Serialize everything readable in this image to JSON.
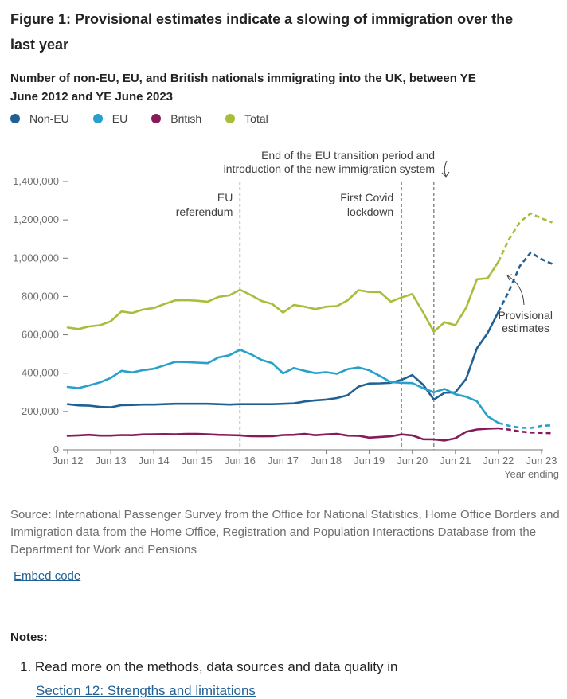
{
  "figure_title": "Figure 1: Provisional estimates indicate a slowing of immigration over the last year",
  "chart_data": {
    "type": "line",
    "title": "Number of non-EU, EU, and British nationals immigrating into the UK, between YE June 2012 and YE June 2023",
    "xlabel": "Year ending",
    "ylabel": "",
    "ylim": [
      0,
      1400000
    ],
    "y_ticks": [
      0,
      200000,
      400000,
      600000,
      800000,
      1000000,
      1200000,
      1400000
    ],
    "y_tick_labels": [
      "0",
      "200,000",
      "400,000",
      "600,000",
      "800,000",
      "1,000,000",
      "1,200,000",
      "1,400,000"
    ],
    "x_tick_labels": [
      "Jun 12",
      "Jun 13",
      "Jun 14",
      "Jun 15",
      "Jun 16",
      "Jun 17",
      "Jun 18",
      "Jun 19",
      "Jun 20",
      "Jun 21",
      "Jun 22",
      "Jun 23"
    ],
    "x_start": "Jun 12",
    "x_end": "Jun 23",
    "x_step": "quarter",
    "grid": false,
    "legend_position": "top-left",
    "series": [
      {
        "name": "Non-EU",
        "color": "#206095",
        "values": [
          238000,
          232000,
          230000,
          224000,
          222000,
          233000,
          234000,
          236000,
          236000,
          238000,
          240000,
          240000,
          240000,
          240000,
          238000,
          236000,
          238000,
          238000,
          238000,
          238000,
          240000,
          242000,
          252000,
          258000,
          262000,
          270000,
          285000,
          330000,
          346000,
          347000,
          350000,
          365000,
          390000,
          340000,
          262000,
          298000,
          300000,
          370000,
          530000,
          610000,
          720000
        ],
        "provisional_values": [
          720000,
          830000,
          960000,
          1030000,
          995000,
          970000
        ]
      },
      {
        "name": "EU",
        "color": "#27a0cc",
        "values": [
          328000,
          322000,
          336000,
          352000,
          375000,
          412000,
          404000,
          416000,
          423000,
          441000,
          459000,
          458000,
          455000,
          452000,
          482000,
          493000,
          522000,
          499000,
          469000,
          452000,
          399000,
          427000,
          412000,
          400000,
          405000,
          397000,
          421000,
          430000,
          415000,
          385000,
          353000,
          350000,
          348000,
          322000,
          300000,
          318000,
          290000,
          277000,
          253000,
          175000,
          140000
        ],
        "provisional_values": [
          140000,
          125000,
          115000,
          114000,
          125000,
          128000
        ]
      },
      {
        "name": "British",
        "color": "#871a5b",
        "values": [
          73000,
          75000,
          78000,
          74000,
          74000,
          77000,
          76000,
          80000,
          81000,
          82000,
          81000,
          83000,
          83000,
          81000,
          78000,
          77000,
          75000,
          71000,
          70000,
          71000,
          77000,
          78000,
          83000,
          76000,
          80000,
          83000,
          74000,
          73000,
          63000,
          67000,
          70000,
          80000,
          75000,
          55000,
          54000,
          48000,
          60000,
          94000,
          106000,
          110000,
          112000
        ],
        "provisional_values": [
          112000,
          105000,
          95000,
          90000,
          88000,
          86000
        ]
      },
      {
        "name": "Total",
        "color": "#a8bd3a",
        "values": [
          638000,
          630000,
          644000,
          650000,
          671000,
          722000,
          714000,
          732000,
          740000,
          761000,
          780000,
          781000,
          778000,
          773000,
          798000,
          806000,
          835000,
          808000,
          777000,
          761000,
          716000,
          756000,
          747000,
          734000,
          747000,
          750000,
          780000,
          833000,
          824000,
          823000,
          773000,
          795000,
          813000,
          717000,
          616000,
          666000,
          650000,
          741000,
          890000,
          895000,
          982000
        ],
        "provisional_values": [
          982000,
          1100000,
          1190000,
          1234000,
          1208000,
          1186000
        ]
      }
    ],
    "annotations": [
      {
        "text_lines": [
          "EU",
          "referendum"
        ],
        "x_label": "Jun 16",
        "align": "right"
      },
      {
        "text_lines": [
          "First Covid",
          "lockdown"
        ],
        "x_label": "Mar 20",
        "align": "right"
      },
      {
        "text_lines": [
          "End of the EU transition period and",
          "introduction of the new immigration system"
        ],
        "x_label": "Dec 20",
        "align": "right"
      },
      {
        "text_lines": [
          "Provisional",
          "estimates"
        ],
        "x_label": "Mar 22",
        "align": "right"
      }
    ]
  },
  "source": "Source: International Passenger Survey from the Office for National Statistics, Home Office Borders and Immigration data from the Home Office, Registration and Population Interactions Database from the Department for Work and Pensions",
  "embed_label": "Embed code",
  "notes_heading": "Notes:",
  "notes": [
    {
      "number": "1.",
      "text": "Read more on the methods, data sources and data quality in",
      "link": "Section 12: Strengths and limitations"
    }
  ]
}
